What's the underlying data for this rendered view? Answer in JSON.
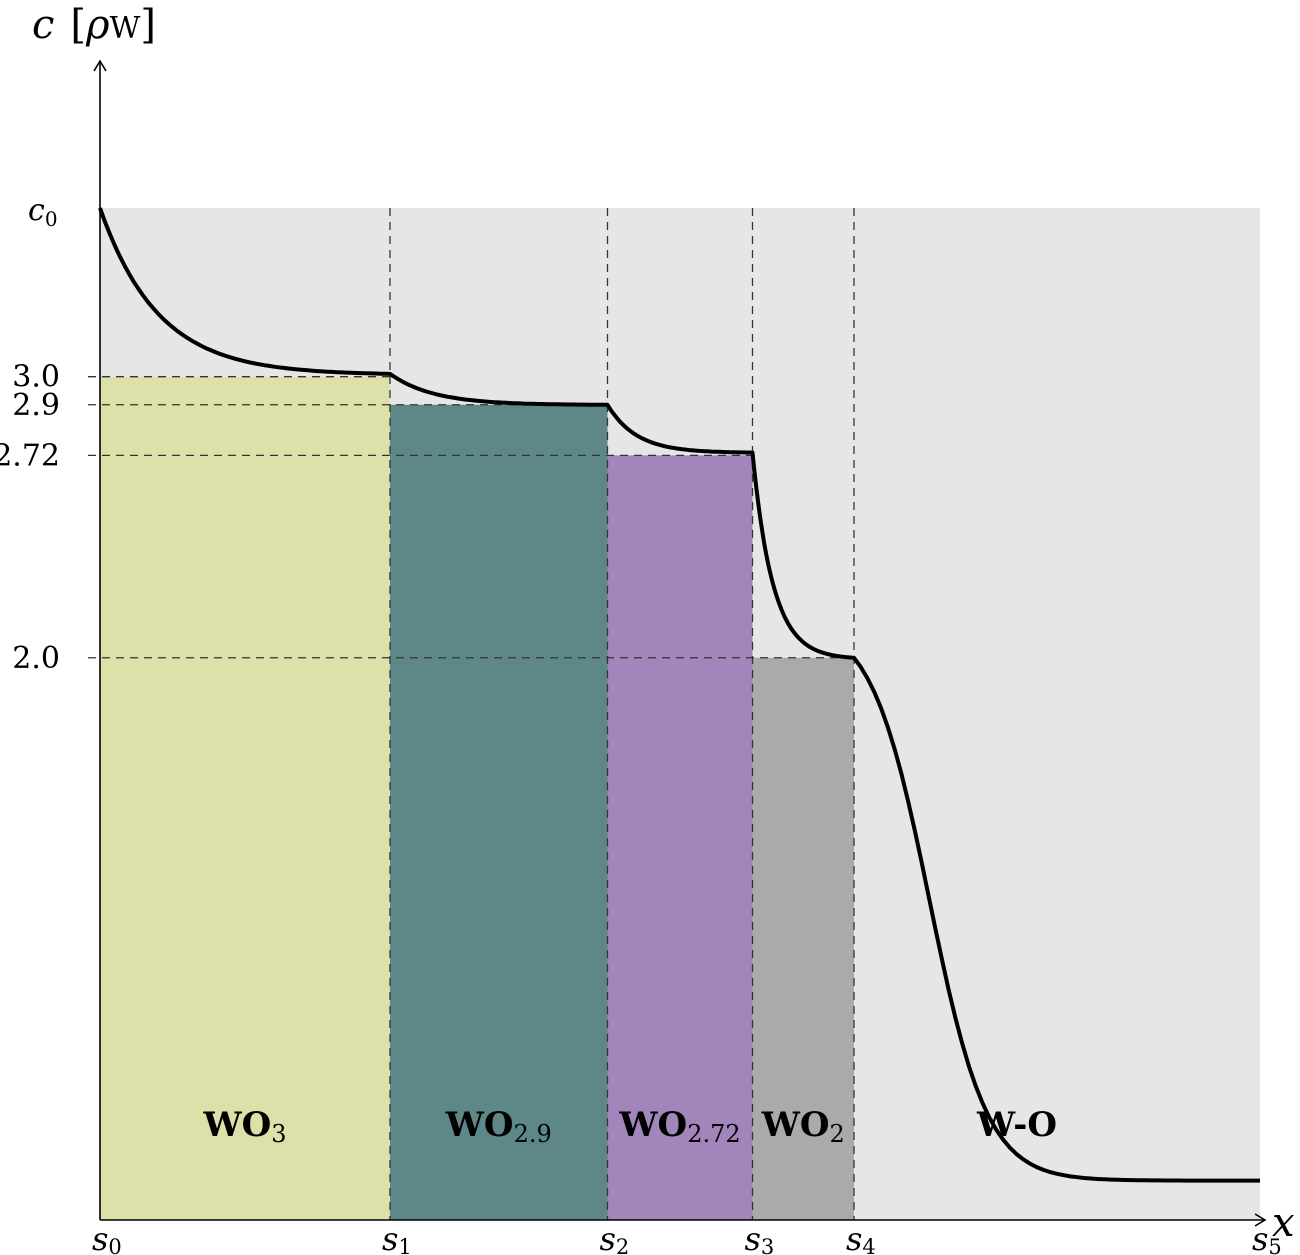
{
  "chart_data": {
    "type": "area",
    "axes": {
      "y_label": {
        "symbol": "c",
        "unit": "ρ",
        "unit_sub": "W"
      },
      "x_label": "x",
      "y_ticks": [
        {
          "label": "c",
          "sub": "0",
          "value": 3.6
        },
        {
          "label": "3.0",
          "value": 3.0
        },
        {
          "label": "2.9",
          "value": 2.9
        },
        {
          "label": "2.72",
          "value": 2.72
        },
        {
          "label": "2.0",
          "value": 2.0
        }
      ],
      "x_ticks": [
        {
          "label": "s",
          "sub": "0",
          "value": 0
        },
        {
          "label": "s",
          "sub": "1",
          "value": 1
        },
        {
          "label": "s",
          "sub": "2",
          "value": 1.75
        },
        {
          "label": "s",
          "sub": "3",
          "value": 2.25
        },
        {
          "label": "s",
          "sub": "4",
          "value": 2.6
        },
        {
          "label": "s",
          "sub": "5",
          "value": 4
        }
      ],
      "ylim": [
        0,
        4.65
      ]
    },
    "background_level": 3.6,
    "regions": [
      {
        "name": "WO",
        "sub": "3",
        "x_start": 0,
        "x_end": 1,
        "level": 3.0,
        "color": "#dde0a9"
      },
      {
        "name": "WO",
        "sub": "2.9",
        "x_start": 1,
        "x_end": 1.75,
        "level": 2.9,
        "color": "#5e8788"
      },
      {
        "name": "WO",
        "sub": "2.72",
        "x_start": 1.75,
        "x_end": 2.25,
        "level": 2.72,
        "color": "#a286bb"
      },
      {
        "name": "WO",
        "sub": "2",
        "x_start": 2.25,
        "x_end": 2.6,
        "level": 2.0,
        "color": "#aaaaaa"
      },
      {
        "name": "W-O",
        "sub": "",
        "x_start": 2.6,
        "x_end": 4,
        "level": 3.6,
        "color": "#e6e6e6"
      }
    ],
    "curve_segments": [
      {
        "x_start": 0,
        "x_end": 1,
        "y_start": 3.6,
        "y_end": 3.01,
        "shape": "exp_decay"
      },
      {
        "x_start": 1,
        "x_end": 1.75,
        "y_start": 3.01,
        "y_end": 2.9,
        "shape": "exp_decay"
      },
      {
        "x_start": 1.75,
        "x_end": 2.25,
        "y_start": 2.9,
        "y_end": 2.73,
        "shape": "exp_decay"
      },
      {
        "x_start": 2.25,
        "x_end": 2.6,
        "y_start": 2.73,
        "y_end": 2.0,
        "shape": "exp_decay"
      },
      {
        "x_start": 2.6,
        "x_end": 4,
        "y_start": 2.0,
        "y_end": 0.14,
        "shape": "exp_decay"
      }
    ],
    "grid": false,
    "legend": "none"
  },
  "colors": {
    "background_region": "#e6e6e6",
    "curve": "#000000",
    "guides": "#333333"
  }
}
